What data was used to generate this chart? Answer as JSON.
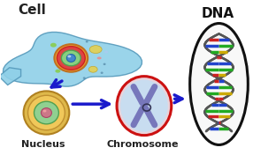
{
  "bg_color": "#ffffff",
  "title_cell": "Cell",
  "title_nucleus": "Nucleus",
  "title_chromosome": "Chromosome",
  "title_dna": "DNA",
  "arrow_color": "#1a1acc",
  "label_fontsize": 8,
  "title_fontsize": 11
}
